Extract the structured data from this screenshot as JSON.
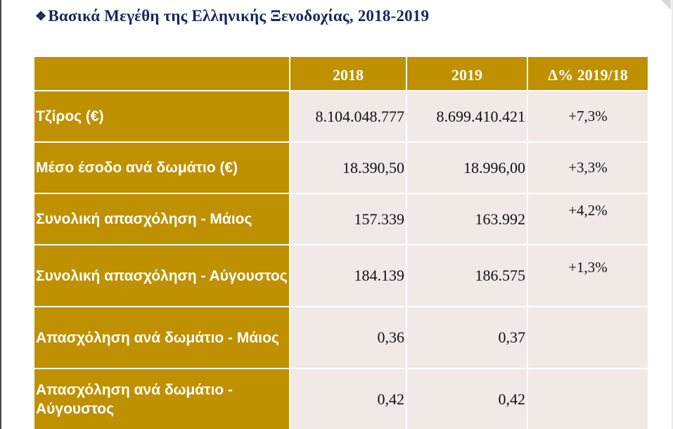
{
  "title": {
    "bullet_icon": "diamond-bullet-icon",
    "text": "Βασικά Μεγέθη της Ελληνικής Ξενοδοχίας, 2018-2019"
  },
  "colors": {
    "header_fill": "#bf9000",
    "body_fill": "#f1e9e6",
    "title_color": "#17275c"
  },
  "table": {
    "headers": [
      "",
      "2018",
      "2019",
      "Δ% 2019/18"
    ],
    "rows": [
      {
        "label": "Τζίρος (€)",
        "v2018": "8.104.048.777",
        "v2019": "8.699.410.421",
        "change": "+7,3%"
      },
      {
        "label": "Μέσο έσοδο ανά δωμάτιο (€)",
        "v2018": "18.390,50",
        "v2019": "18.996,00",
        "change": "+3,3%"
      },
      {
        "label": "Συνολική απασχόληση - Μάιος",
        "v2018": "157.339",
        "v2019": "163.992",
        "change": "+4,2%"
      },
      {
        "label": "Συνολική απασχόληση - Αύγουστος",
        "v2018": "184.139",
        "v2019": "186.575",
        "change": "+1,3%"
      },
      {
        "label": "Απασχόληση ανά δωμάτιο - Μάιος",
        "v2018": "0,36",
        "v2019": "0,37",
        "change": ""
      },
      {
        "label": "Απασχόληση ανά δωμάτιο - Αύγουστος",
        "v2018": "0,42",
        "v2019": "0,42",
        "change": ""
      }
    ]
  }
}
